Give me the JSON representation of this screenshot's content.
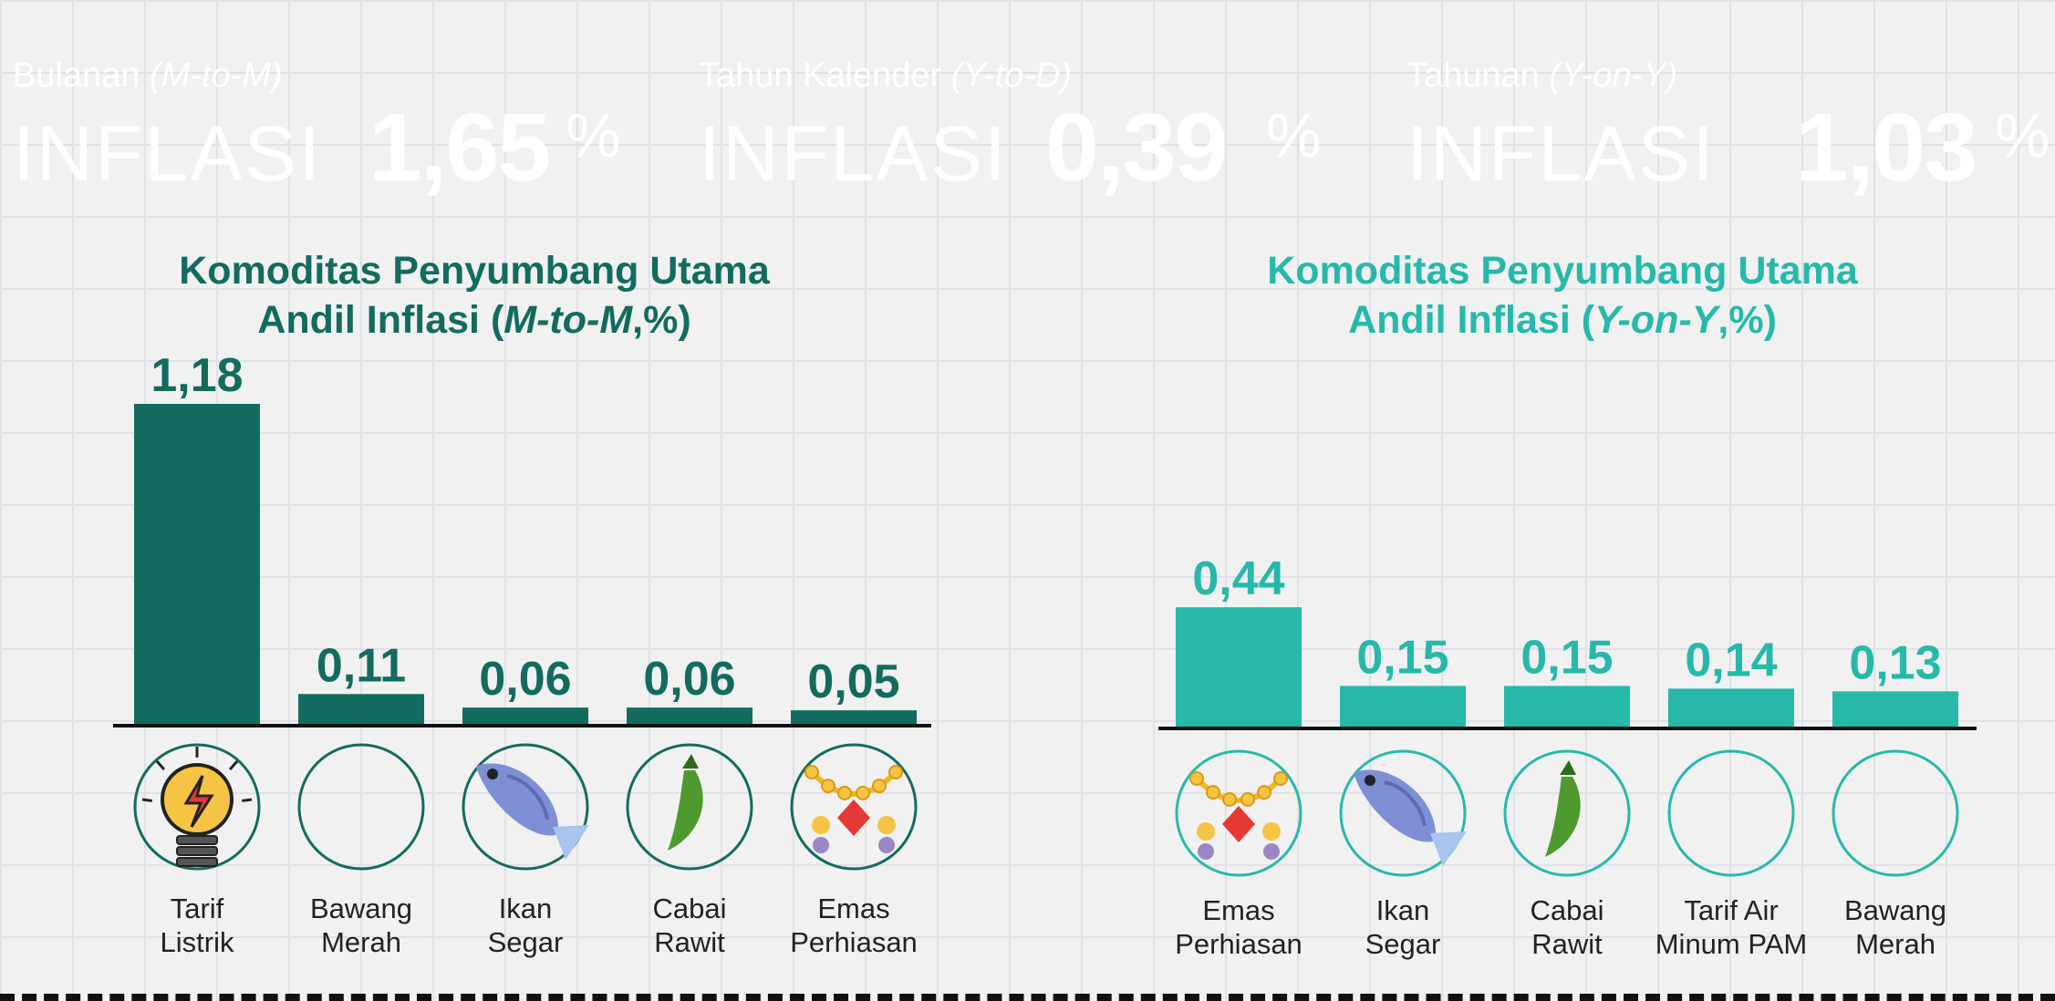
{
  "colors": {
    "dark": "#136b5f",
    "mid": "#17998b",
    "light": "#26b9aa",
    "axis": "#111111"
  },
  "cards": [
    {
      "period": "Bulanan",
      "period_italic": "(M-to-M)",
      "word": "INFLASI",
      "value": "1,65",
      "unit": "%",
      "color": "#136b5f"
    },
    {
      "period": "Tahun Kalender",
      "period_italic": "(Y-to-D)",
      "word": "INFLASI",
      "value": "0,39",
      "unit": "%",
      "color": "#17998b"
    },
    {
      "period": "Tahunan",
      "period_italic": "(Y-on-Y)",
      "word": "INFLASI",
      "value": "1,03",
      "unit": "%",
      "color": "#26b9aa"
    }
  ],
  "chart_data": [
    {
      "type": "bar",
      "title_line1": "Komoditas Penyumbang Utama",
      "title_line2_prefix": "Andil Inflasi (",
      "title_line2_italic": "M-to-M",
      "title_line2_suffix": ",%)",
      "categories": [
        "Tarif\nListrik",
        "Bawang\nMerah",
        "Ikan\nSegar",
        "Cabai\nRawit",
        "Emas\nPerhiasan"
      ],
      "values": [
        1.18,
        0.11,
        0.06,
        0.06,
        0.05
      ],
      "value_labels": [
        "1,18",
        "0,11",
        "0,06",
        "0,06",
        "0,05"
      ],
      "icons": [
        "lightbulb-icon",
        "",
        "fish-icon",
        "chili-icon",
        "necklace-icon"
      ],
      "ylim": [
        0,
        1.18
      ],
      "color": "#136b5f"
    },
    {
      "type": "bar",
      "title_line1": "Komoditas Penyumbang Utama",
      "title_line2_prefix": "Andil Inflasi (",
      "title_line2_italic": "Y-on-Y",
      "title_line2_suffix": ",%)",
      "categories": [
        "Emas\nPerhiasan",
        "Ikan\nSegar",
        "Cabai\nRawit",
        "Tarif Air\nMinum PAM",
        "Bawang\nMerah"
      ],
      "values": [
        0.44,
        0.15,
        0.15,
        0.14,
        0.13
      ],
      "value_labels": [
        "0,44",
        "0,15",
        "0,15",
        "0,14",
        "0,13"
      ],
      "icons": [
        "necklace-icon",
        "fish-icon",
        "chili-icon",
        "",
        ""
      ],
      "ylim": [
        0,
        1.18
      ],
      "color": "#26b9aa"
    }
  ]
}
